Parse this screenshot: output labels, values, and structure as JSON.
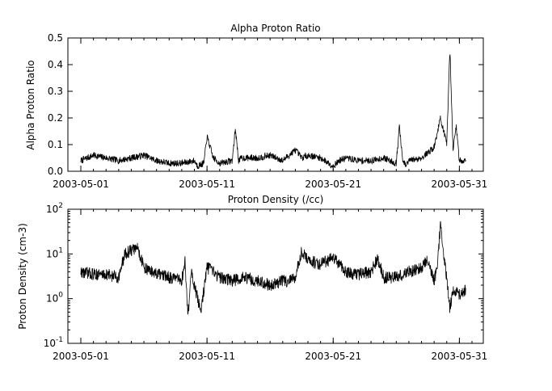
{
  "chart_data": [
    {
      "type": "line",
      "title": "Alpha Proton Ratio",
      "xlabel": "",
      "ylabel": "Alpha Proton Ratio",
      "xlim": [
        "2003-05-01",
        "2003-06-01"
      ],
      "ylim": [
        0,
        0.5
      ],
      "yscale": "linear",
      "yticks": [
        {
          "value": 0.0,
          "label": "0.0"
        },
        {
          "value": 0.1,
          "label": "0.1"
        },
        {
          "value": 0.2,
          "label": "0.2"
        },
        {
          "value": 0.3,
          "label": "0.3"
        },
        {
          "value": 0.4,
          "label": "0.4"
        },
        {
          "value": 0.5,
          "label": "0.5"
        }
      ],
      "xticks": [
        {
          "value": "2003-05-01",
          "label": "2003-05-01"
        },
        {
          "value": "2003-05-11",
          "label": "2003-05-11"
        },
        {
          "value": "2003-05-21",
          "label": "2003-05-21"
        },
        {
          "value": "2003-05-31",
          "label": "2003-05-31"
        }
      ],
      "grid": false,
      "series": [
        {
          "x": [
            "2003-05-01",
            "2003-05-02",
            "2003-05-03",
            "2003-05-04",
            "2003-05-05",
            "2003-05-06",
            "2003-05-07",
            "2003-05-08",
            "2003-05-09",
            "2003-05-10",
            "2003-05-10 06:00",
            "2003-05-10 18:00",
            "2003-05-11",
            "2003-05-11 12:00",
            "2003-05-12",
            "2003-05-13",
            "2003-05-13 06:00",
            "2003-05-13 12:00",
            "2003-05-13 18:00",
            "2003-05-14",
            "2003-05-15",
            "2003-05-16",
            "2003-05-17",
            "2003-05-18",
            "2003-05-18 12:00",
            "2003-05-19",
            "2003-05-20",
            "2003-05-21",
            "2003-05-21 12:00",
            "2003-05-22",
            "2003-05-23",
            "2003-05-24",
            "2003-05-25",
            "2003-05-26",
            "2003-05-26 06:00",
            "2003-05-26 12:00",
            "2003-05-26 18:00",
            "2003-05-27",
            "2003-05-28",
            "2003-05-29",
            "2003-05-29 12:00",
            "2003-05-30",
            "2003-05-30 06:00",
            "2003-05-30 12:00",
            "2003-05-30 18:00",
            "2003-05-31",
            "2003-05-31 12:00"
          ],
          "y": [
            0.04,
            0.06,
            0.05,
            0.04,
            0.05,
            0.06,
            0.04,
            0.03,
            0.03,
            0.04,
            0.02,
            0.03,
            0.13,
            0.05,
            0.03,
            0.04,
            0.16,
            0.04,
            0.05,
            0.05,
            0.05,
            0.06,
            0.04,
            0.08,
            0.05,
            0.06,
            0.05,
            0.02,
            0.04,
            0.05,
            0.04,
            0.04,
            0.05,
            0.03,
            0.17,
            0.04,
            0.02,
            0.04,
            0.05,
            0.09,
            0.2,
            0.1,
            0.46,
            0.08,
            0.17,
            0.04,
            0.04
          ]
        }
      ]
    },
    {
      "type": "line",
      "title": "Proton Density (/cc)",
      "xlabel": "",
      "ylabel": "Proton Density (cm-3)",
      "xlim": [
        "2003-05-01",
        "2003-06-01"
      ],
      "ylim": [
        0.1,
        100
      ],
      "yscale": "log",
      "yticks": [
        {
          "value": 0.1,
          "base": "10",
          "exp": "-1"
        },
        {
          "value": 1,
          "base": "10",
          "exp": "0"
        },
        {
          "value": 10,
          "base": "10",
          "exp": "1"
        },
        {
          "value": 100,
          "base": "10",
          "exp": "2"
        }
      ],
      "xticks": [
        {
          "value": "2003-05-01",
          "label": "2003-05-01"
        },
        {
          "value": "2003-05-11",
          "label": "2003-05-11"
        },
        {
          "value": "2003-05-21",
          "label": "2003-05-21"
        },
        {
          "value": "2003-05-31",
          "label": "2003-05-31"
        }
      ],
      "grid": false,
      "series": [
        {
          "x": [
            "2003-05-01",
            "2003-05-02",
            "2003-05-03",
            "2003-05-04",
            "2003-05-04 12:00",
            "2003-05-05",
            "2003-05-05 12:00",
            "2003-05-06",
            "2003-05-07",
            "2003-05-08",
            "2003-05-09",
            "2003-05-09 06:00",
            "2003-05-09 12:00",
            "2003-05-09 18:00",
            "2003-05-10",
            "2003-05-10 12:00",
            "2003-05-11",
            "2003-05-12",
            "2003-05-13",
            "2003-05-14",
            "2003-05-15",
            "2003-05-16",
            "2003-05-17",
            "2003-05-17 12:00",
            "2003-05-18",
            "2003-05-18 12:00",
            "2003-05-19",
            "2003-05-20",
            "2003-05-21",
            "2003-05-22",
            "2003-05-23",
            "2003-05-24",
            "2003-05-24 12:00",
            "2003-05-25",
            "2003-05-26",
            "2003-05-27",
            "2003-05-28",
            "2003-05-28 12:00",
            "2003-05-29",
            "2003-05-29 06:00",
            "2003-05-29 12:00",
            "2003-05-29 18:00",
            "2003-05-30",
            "2003-05-30 06:00",
            "2003-05-30 12:00",
            "2003-05-31",
            "2003-05-31 12:00"
          ],
          "y": [
            4,
            3.5,
            3.5,
            3,
            10,
            12,
            14,
            5,
            3.5,
            3,
            2.5,
            7,
            0.4,
            4,
            2,
            0.5,
            5,
            3,
            2.5,
            3,
            2.5,
            2,
            2.5,
            2.5,
            3,
            12,
            7,
            6,
            8,
            4,
            3.5,
            4,
            8,
            3,
            3,
            4,
            5,
            8,
            2.5,
            5,
            45,
            10,
            3,
            0.6,
            1.5,
            1.3,
            1.5
          ]
        }
      ]
    }
  ]
}
